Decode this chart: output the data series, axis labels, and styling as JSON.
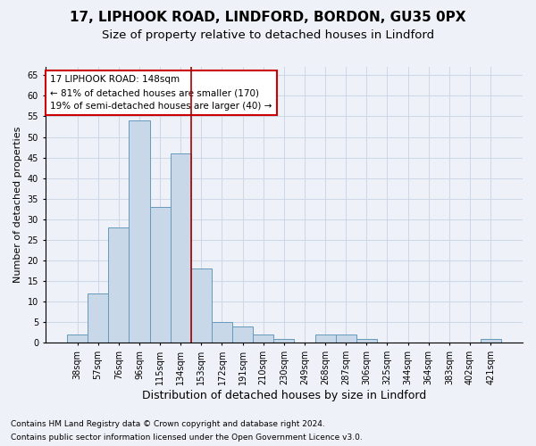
{
  "title1": "17, LIPHOOK ROAD, LINDFORD, BORDON, GU35 0PX",
  "title2": "Size of property relative to detached houses in Lindford",
  "xlabel": "Distribution of detached houses by size in Lindford",
  "ylabel": "Number of detached properties",
  "categories": [
    "38sqm",
    "57sqm",
    "76sqm",
    "96sqm",
    "115sqm",
    "134sqm",
    "153sqm",
    "172sqm",
    "191sqm",
    "210sqm",
    "230sqm",
    "249sqm",
    "268sqm",
    "287sqm",
    "306sqm",
    "325sqm",
    "344sqm",
    "364sqm",
    "383sqm",
    "402sqm",
    "421sqm"
  ],
  "values": [
    2,
    12,
    28,
    54,
    33,
    46,
    18,
    5,
    4,
    2,
    1,
    0,
    2,
    2,
    1,
    0,
    0,
    0,
    0,
    0,
    1
  ],
  "bar_color": "#c8d8e8",
  "bar_edge_color": "#6699bb",
  "grid_color": "#d0d8e8",
  "background_color": "#eef2f8",
  "vline_x": 6.0,
  "vline_color": "#aa0000",
  "annotation_text": "17 LIPHOOK ROAD: 148sqm\n← 81% of detached houses are smaller (170)\n19% of semi-detached houses are larger (40) →",
  "annotation_box_color": "#ffffff",
  "annotation_box_edgecolor": "#cc0000",
  "ylim": [
    0,
    67
  ],
  "yticks": [
    0,
    5,
    10,
    15,
    20,
    25,
    30,
    35,
    40,
    45,
    50,
    55,
    60,
    65
  ],
  "footnote1": "Contains HM Land Registry data © Crown copyright and database right 2024.",
  "footnote2": "Contains public sector information licensed under the Open Government Licence v3.0.",
  "title1_fontsize": 11,
  "title2_fontsize": 9.5,
  "xlabel_fontsize": 9,
  "ylabel_fontsize": 8,
  "tick_fontsize": 7,
  "annot_fontsize": 7.5,
  "footnote_fontsize": 6.5
}
